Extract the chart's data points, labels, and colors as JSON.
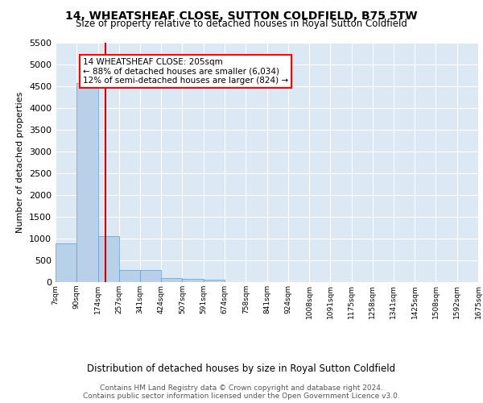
{
  "title": "14, WHEATSHEAF CLOSE, SUTTON COLDFIELD, B75 5TW",
  "subtitle": "Size of property relative to detached houses in Royal Sutton Coldfield",
  "xlabel": "Distribution of detached houses by size in Royal Sutton Coldfield",
  "ylabel": "Number of detached properties",
  "bar_color": "#b8d0e8",
  "bar_edge_color": "#6699cc",
  "background_color": "#dde8f5",
  "annotation_text": "14 WHEATSHEAF CLOSE: 205sqm\n← 88% of detached houses are smaller (6,034)\n12% of semi-detached houses are larger (824) →",
  "vline_x": 205,
  "vline_color": "#cc0000",
  "footer_line1": "Contains HM Land Registry data © Crown copyright and database right 2024.",
  "footer_line2": "Contains public sector information licensed under the Open Government Licence v3.0.",
  "ylim": [
    0,
    5500
  ],
  "bin_edges": [
    7,
    90,
    174,
    257,
    341,
    424,
    507,
    591,
    674,
    758,
    841,
    924,
    1008,
    1091,
    1175,
    1258,
    1341,
    1425,
    1508,
    1592,
    1675
  ],
  "bin_heights": [
    880,
    4560,
    1060,
    285,
    285,
    85,
    80,
    55,
    0,
    0,
    0,
    0,
    0,
    0,
    0,
    0,
    0,
    0,
    0,
    0
  ],
  "tick_labels": [
    "7sqm",
    "90sqm",
    "174sqm",
    "257sqm",
    "341sqm",
    "424sqm",
    "507sqm",
    "591sqm",
    "674sqm",
    "758sqm",
    "841sqm",
    "924sqm",
    "1008sqm",
    "1091sqm",
    "1175sqm",
    "1258sqm",
    "1341sqm",
    "1425sqm",
    "1508sqm",
    "1592sqm",
    "1675sqm"
  ]
}
